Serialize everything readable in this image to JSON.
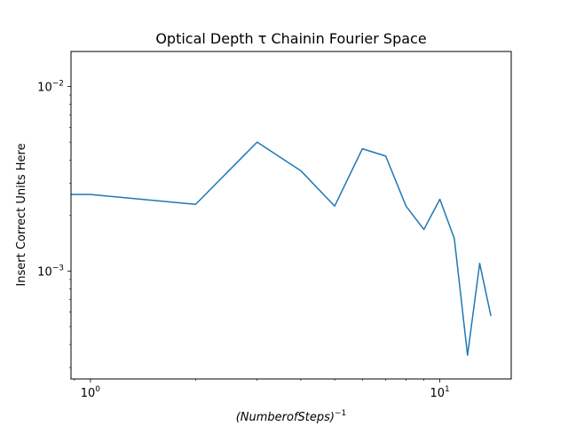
{
  "chart_data": {
    "type": "line",
    "title": "Optical Depth τ Chainin Fourier Space",
    "xlabel": "(NumberofSteps)",
    "xlabel_sup": "−1",
    "ylabel": "Insert Correct Units Here",
    "xscale": "log",
    "yscale": "log",
    "xlim": [
      0.88,
      16.0
    ],
    "ylim": [
      0.00026,
      0.0155
    ],
    "grid": false,
    "series": [
      {
        "color": "#1f77b4",
        "x": [
          0.5,
          1,
          2,
          3,
          4,
          5,
          6,
          7,
          8,
          9,
          10,
          11,
          12,
          13,
          14
        ],
        "y": [
          0.0026,
          0.0026,
          0.0023,
          0.005,
          0.0035,
          0.00225,
          0.0046,
          0.0042,
          0.00225,
          0.00168,
          0.00245,
          0.0015,
          0.00035,
          0.0011,
          0.00057
        ]
      }
    ],
    "x_ticks": [
      {
        "value": 1,
        "base": "10",
        "exp": "0"
      },
      {
        "value": 10,
        "base": "10",
        "exp": "1"
      }
    ],
    "y_ticks": [
      {
        "value": 0.01,
        "base": "10",
        "exp": "−2"
      },
      {
        "value": 0.001,
        "base": "10",
        "exp": "−3"
      }
    ]
  }
}
